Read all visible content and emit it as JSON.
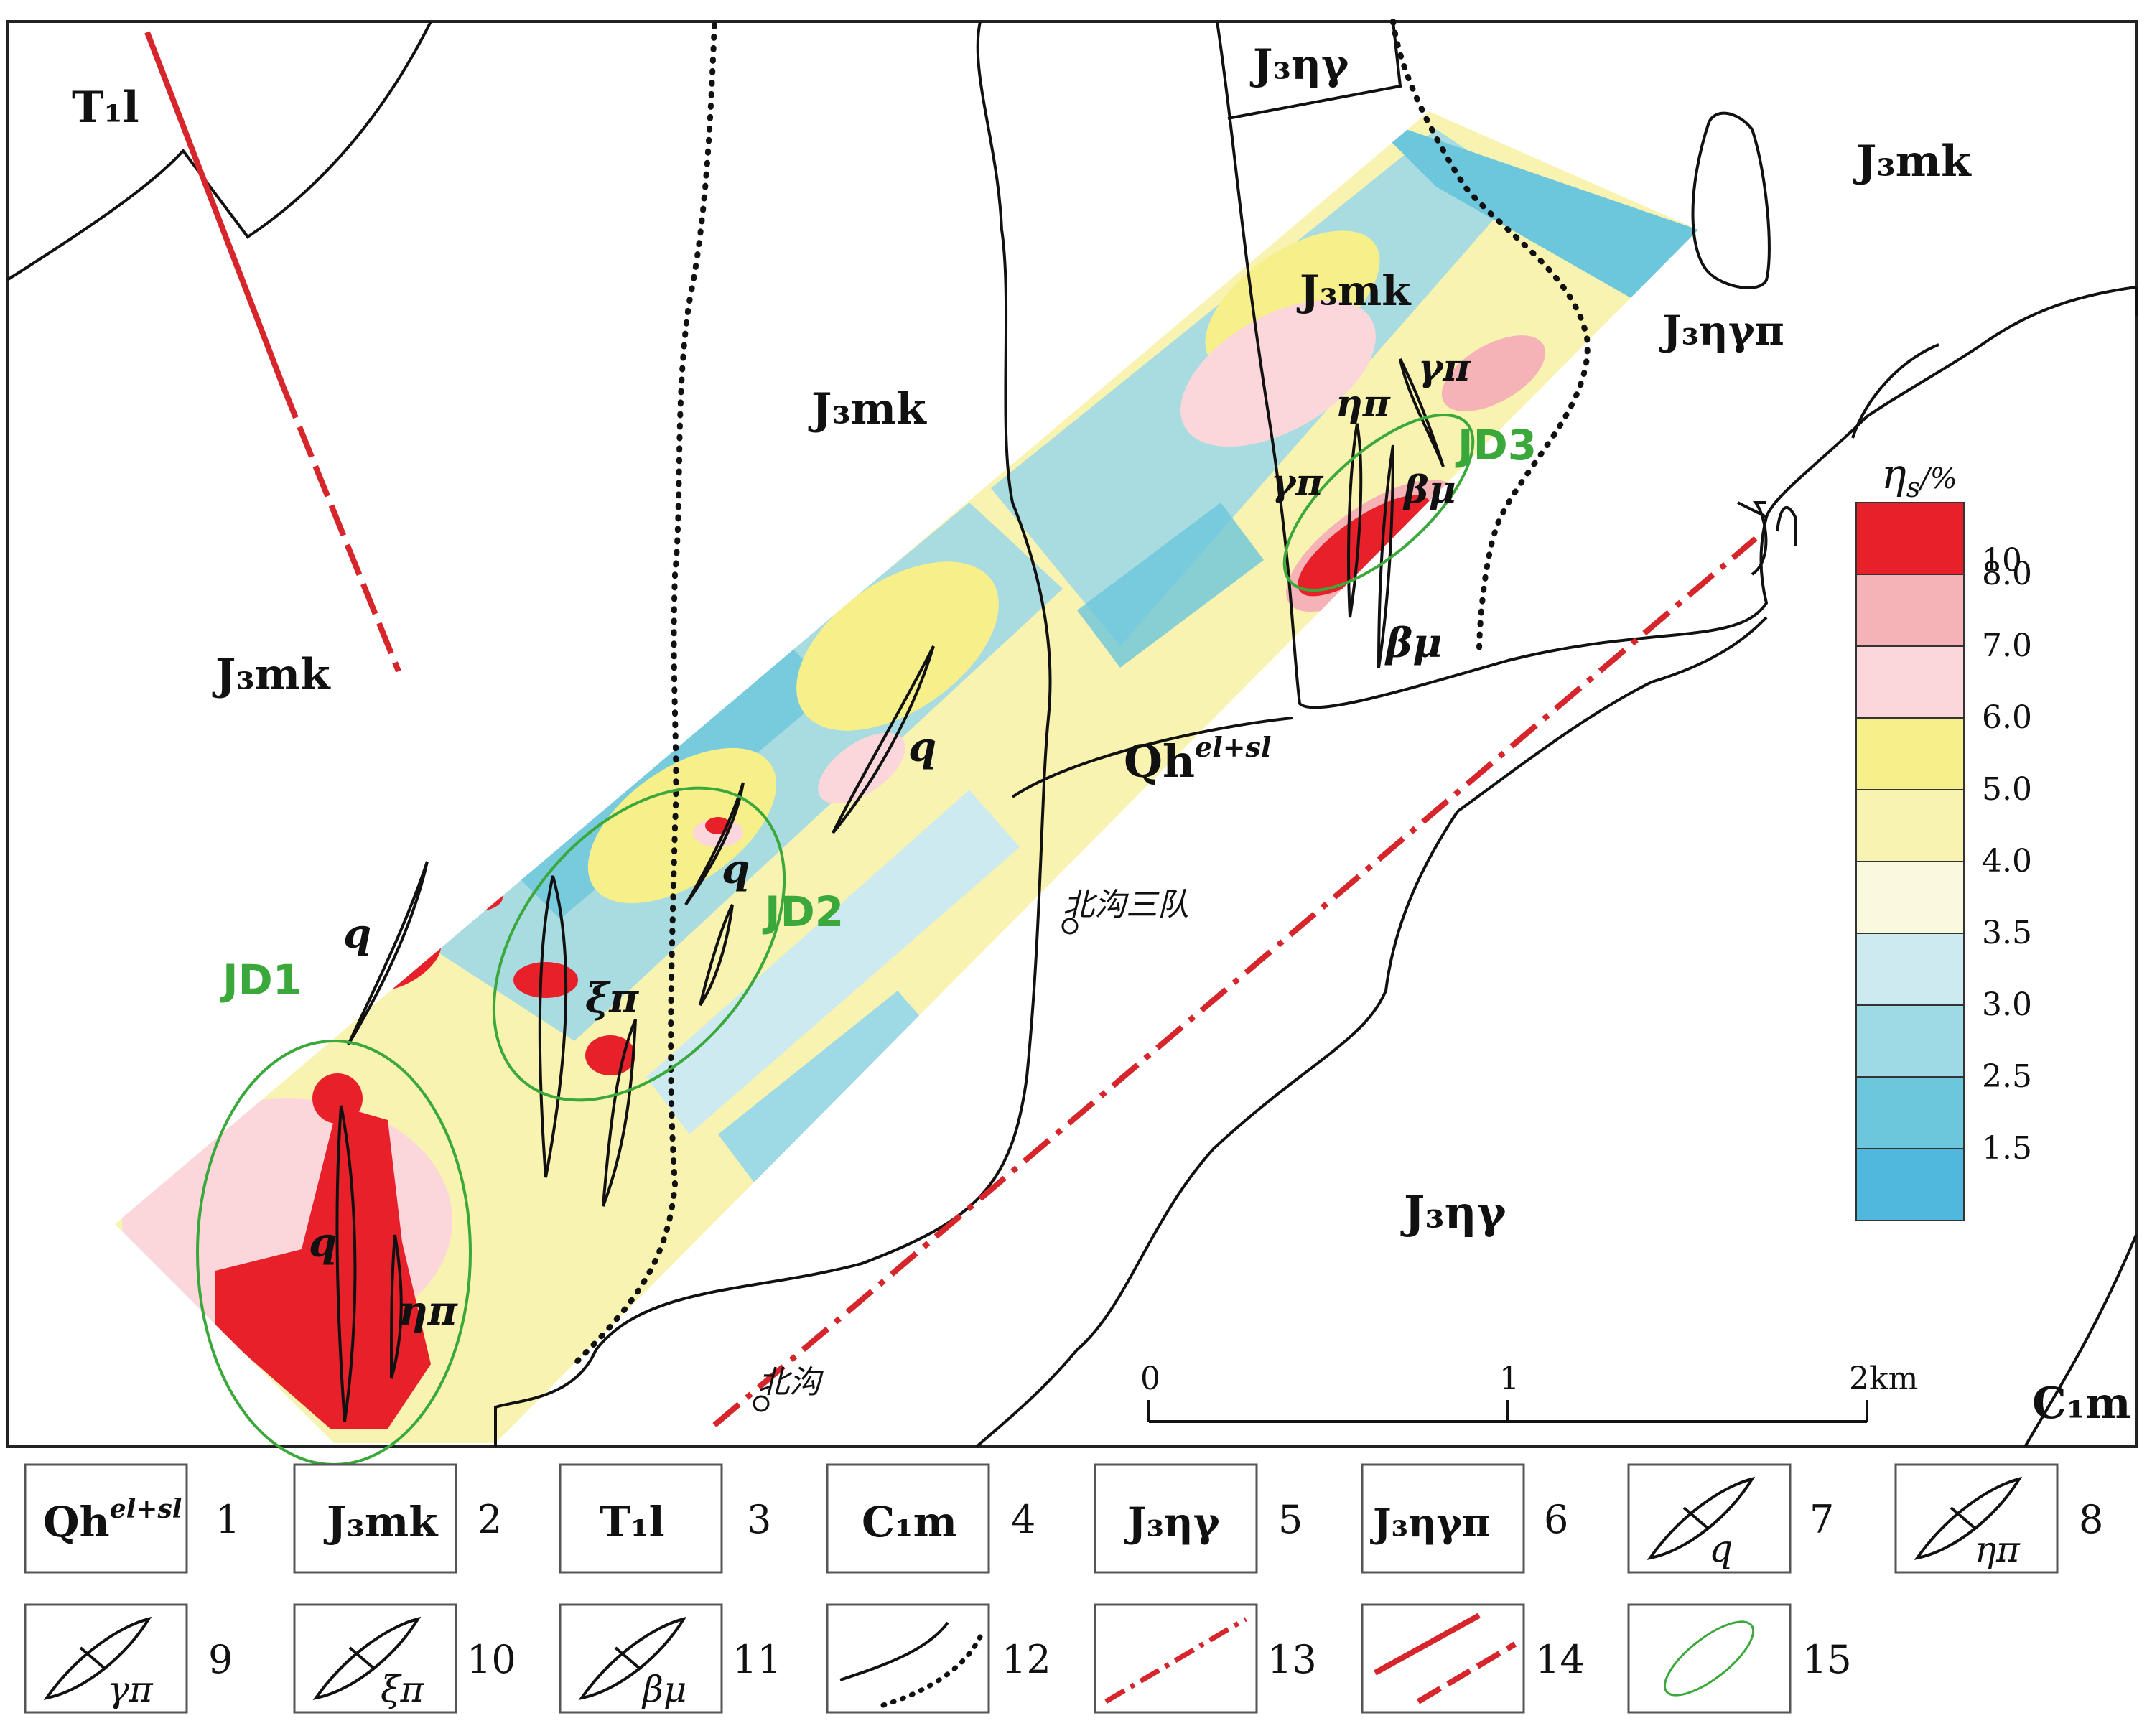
{
  "map": {
    "unit_labels": {
      "t1l": "T₁l",
      "j3mk": "J₃mk",
      "j3ngamma": "J₃ηγ",
      "j3ngpi": "J₃ηγπ",
      "qh": "Qh",
      "qh_sup": "el+sl",
      "c1m": "C₁m"
    },
    "dike_labels": {
      "q": "q",
      "eta_pi": "ηπ",
      "gamma_pi": "γπ",
      "xi_pi": "ξπ",
      "beta_mu": "βμ"
    },
    "anomaly_zones": [
      "JD1",
      "JD2",
      "JD3"
    ],
    "places": {
      "beigou_sandui": "北沟三队",
      "beigou": "北沟"
    },
    "scale_bar": {
      "ticks": [
        "0",
        "1",
        "2"
      ],
      "unit": "km"
    }
  },
  "colorbar": {
    "title": "η",
    "title_sub": "s",
    "title_suffix": "/%",
    "ticks": [
      "10",
      "8.0",
      "7.0",
      "6.0",
      "5.0",
      "4.0",
      "3.5",
      "3.0",
      "2.5",
      "1.5"
    ],
    "colors": [
      "#e8202a",
      "#f5b3b8",
      "#fbd7dc",
      "#f6ef8a",
      "#f8f3b0",
      "#fbf9dd",
      "#cdeaf0",
      "#9ed9e6",
      "#6cc6dc",
      "#4fb8dc"
    ]
  },
  "legend": [
    {
      "n": "1",
      "label": "Qh",
      "sup": "el+sl"
    },
    {
      "n": "2",
      "label": "J₃mk"
    },
    {
      "n": "3",
      "label": "T₁l"
    },
    {
      "n": "4",
      "label": "C₁m"
    },
    {
      "n": "5",
      "label": "J₃ηγ"
    },
    {
      "n": "6",
      "label": "J₃ηγπ"
    },
    {
      "n": "7",
      "label": "q"
    },
    {
      "n": "8",
      "label": "ηπ"
    },
    {
      "n": "9",
      "label": "γπ"
    },
    {
      "n": "10",
      "label": "ξπ"
    },
    {
      "n": "11",
      "label": "βμ"
    },
    {
      "n": "12",
      "label": ""
    },
    {
      "n": "13",
      "label": ""
    },
    {
      "n": "14",
      "label": ""
    },
    {
      "n": "15",
      "label": ""
    }
  ],
  "colors": {
    "fault": "#d6252b",
    "zone": "#3aa83a",
    "boundary": "#111111"
  }
}
